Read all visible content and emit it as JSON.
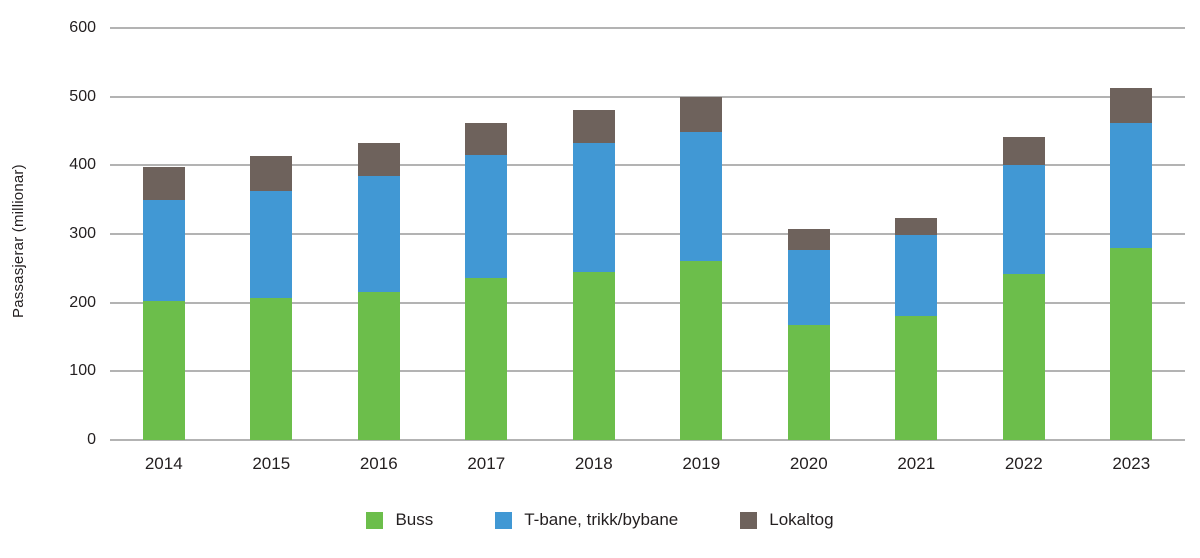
{
  "chart_data": {
    "type": "bar",
    "stacked": true,
    "title": "",
    "xlabel": "",
    "ylabel": "Passasjerar (millionar)",
    "ylim": [
      0,
      600
    ],
    "yticks": [
      0,
      100,
      200,
      300,
      400,
      500,
      600
    ],
    "grid": true,
    "legend_position": "bottom",
    "categories": [
      "2014",
      "2015",
      "2016",
      "2017",
      "2018",
      "2019",
      "2020",
      "2021",
      "2022",
      "2023"
    ],
    "series": [
      {
        "name": "Buss",
        "color": "#6cbe4b",
        "values": [
          203,
          207,
          215,
          236,
          245,
          260,
          168,
          180,
          242,
          280
        ]
      },
      {
        "name": "T-bane, trikk/bybane",
        "color": "#4198d4",
        "values": [
          147,
          156,
          170,
          179,
          188,
          189,
          109,
          118,
          158,
          182
        ]
      },
      {
        "name": "Lokaltog",
        "color": "#6e625c",
        "values": [
          48,
          50,
          48,
          47,
          47,
          50,
          30,
          25,
          42,
          50
        ]
      }
    ]
  },
  "colors": {
    "gridline": "#b3b3b3",
    "text": "#231f20"
  }
}
